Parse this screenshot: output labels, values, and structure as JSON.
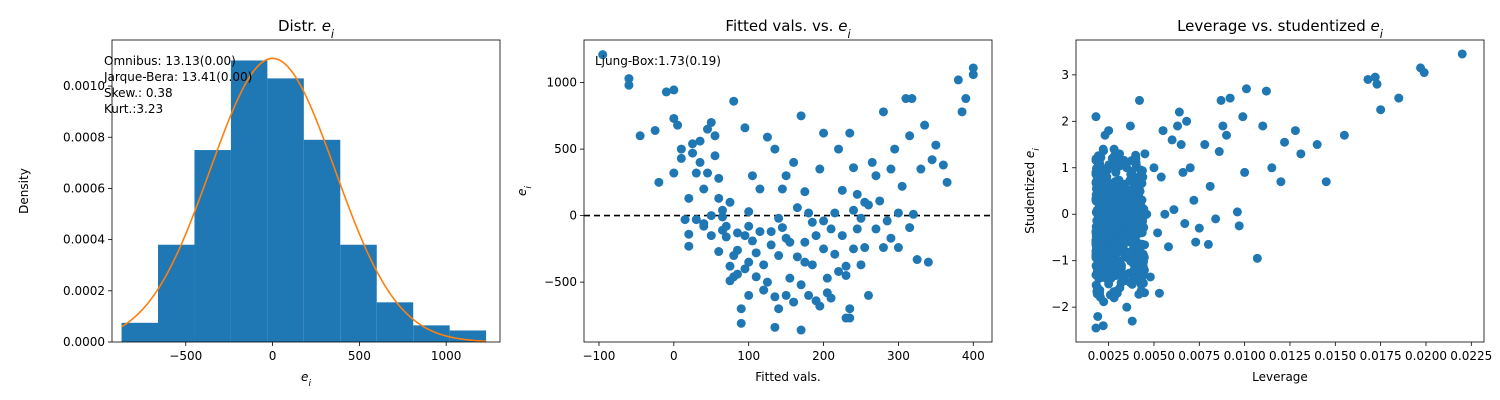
{
  "colors": {
    "bar": "#1f77b4",
    "curve": "#ff7f0e",
    "point": "#1f77b4",
    "zero_line": "#000000"
  },
  "chart_data": [
    {
      "type": "bar",
      "title": "Distr. e_i",
      "xlabel": "e_i",
      "ylabel": "Density",
      "xlim": [
        -925,
        1310
      ],
      "ylim": [
        0,
        0.00118
      ],
      "xticks": [
        -500,
        0,
        500,
        1000
      ],
      "xticklabels": [
        "−500",
        "0",
        "500",
        "1000"
      ],
      "yticks": [
        0,
        0.0002,
        0.0004,
        0.0006,
        0.0008,
        0.001
      ],
      "yticklabels": [
        "0.0000",
        "0.0002",
        "0.0004",
        "0.0006",
        "0.0008",
        "0.0010"
      ],
      "bins": [
        [
          -870,
          -660,
          7.5e-05
        ],
        [
          -660,
          -450,
          0.00038
        ],
        [
          -450,
          -240,
          0.00075
        ],
        [
          -240,
          -30,
          0.0011
        ],
        [
          -30,
          180,
          0.00103
        ],
        [
          180,
          390,
          0.00079
        ],
        [
          390,
          600,
          0.00038
        ],
        [
          600,
          810,
          0.000155
        ],
        [
          810,
          1020,
          6.5e-05
        ],
        [
          1020,
          1230,
          4.5e-05
        ]
      ],
      "density_curve": {
        "name": "normal fit",
        "mean": 0,
        "sd": 360,
        "x_range": [
          -870,
          1230
        ]
      },
      "annotation": [
        "Omnibus: 13.13(0.00)",
        "Jarque-Bera: 13.41(0.00)",
        "Skew.: 0.38",
        "Kurt.:3.23"
      ]
    },
    {
      "type": "scatter",
      "title": "Fitted vals. vs. e_i",
      "xlabel": "Fitted vals.",
      "ylabel": "e_i",
      "xlim": [
        -120,
        425
      ],
      "ylim": [
        -950,
        1320
      ],
      "xticks": [
        -100,
        0,
        100,
        200,
        300,
        400
      ],
      "xticklabels": [
        "−100",
        "0",
        "100",
        "200",
        "300",
        "400"
      ],
      "yticks": [
        -500,
        0,
        500,
        1000
      ],
      "yticklabels": [
        "−500",
        "0",
        "500",
        "1000"
      ],
      "reference_line_y": 0,
      "annotation": "Ljung-Box:1.73(0.19)",
      "points": [
        [
          -95,
          1210
        ],
        [
          -60,
          1030
        ],
        [
          -60,
          980
        ],
        [
          -45,
          600
        ],
        [
          -25,
          640
        ],
        [
          -20,
          250
        ],
        [
          -10,
          930
        ],
        [
          0,
          945
        ],
        [
          0,
          320
        ],
        [
          0,
          730
        ],
        [
          5,
          680
        ],
        [
          10,
          500
        ],
        [
          10,
          430
        ],
        [
          15,
          -30
        ],
        [
          20,
          -230
        ],
        [
          20,
          -140
        ],
        [
          20,
          130
        ],
        [
          25,
          540
        ],
        [
          25,
          470
        ],
        [
          30,
          -30
        ],
        [
          30,
          320
        ],
        [
          35,
          560
        ],
        [
          35,
          400
        ],
        [
          40,
          -80
        ],
        [
          40,
          200
        ],
        [
          40,
          -60
        ],
        [
          45,
          650
        ],
        [
          45,
          320
        ],
        [
          50,
          -150
        ],
        [
          50,
          0
        ],
        [
          50,
          700
        ],
        [
          55,
          450
        ],
        [
          55,
          600
        ],
        [
          60,
          -270
        ],
        [
          60,
          130
        ],
        [
          60,
          280
        ],
        [
          65,
          -10
        ],
        [
          65,
          -110
        ],
        [
          65,
          40
        ],
        [
          70,
          -80
        ],
        [
          70,
          -160
        ],
        [
          75,
          -490
        ],
        [
          75,
          -380
        ],
        [
          75,
          100
        ],
        [
          80,
          -300
        ],
        [
          80,
          -460
        ],
        [
          80,
          860
        ],
        [
          85,
          -130
        ],
        [
          85,
          -260
        ],
        [
          85,
          -440
        ],
        [
          90,
          -810
        ],
        [
          90,
          -700
        ],
        [
          95,
          -400
        ],
        [
          95,
          -150
        ],
        [
          95,
          660
        ],
        [
          100,
          -600
        ],
        [
          100,
          -350
        ],
        [
          100,
          30
        ],
        [
          100,
          -80
        ],
        [
          105,
          -190
        ],
        [
          105,
          300
        ],
        [
          110,
          -280
        ],
        [
          110,
          -460
        ],
        [
          115,
          -120
        ],
        [
          115,
          200
        ],
        [
          120,
          -370
        ],
        [
          120,
          -560
        ],
        [
          125,
          -500
        ],
        [
          125,
          590
        ],
        [
          130,
          -220
        ],
        [
          130,
          -120
        ],
        [
          135,
          -840
        ],
        [
          135,
          -610
        ],
        [
          135,
          500
        ],
        [
          140,
          -700
        ],
        [
          140,
          -300
        ],
        [
          140,
          -20
        ],
        [
          145,
          -90
        ],
        [
          145,
          200
        ],
        [
          150,
          -600
        ],
        [
          150,
          -170
        ],
        [
          150,
          300
        ],
        [
          155,
          -470
        ],
        [
          155,
          -200
        ],
        [
          160,
          -650
        ],
        [
          160,
          400
        ],
        [
          165,
          -310
        ],
        [
          165,
          60
        ],
        [
          170,
          -860
        ],
        [
          170,
          750
        ],
        [
          170,
          -520
        ],
        [
          175,
          -200
        ],
        [
          175,
          -350
        ],
        [
          175,
          180
        ],
        [
          180,
          -600
        ],
        [
          180,
          20
        ],
        [
          185,
          -50
        ],
        [
          185,
          -370
        ],
        [
          190,
          -640
        ],
        [
          190,
          -150
        ],
        [
          195,
          -680
        ],
        [
          195,
          350
        ],
        [
          200,
          -250
        ],
        [
          200,
          -40
        ],
        [
          200,
          620
        ],
        [
          205,
          -580
        ],
        [
          205,
          -470
        ],
        [
          210,
          -620
        ],
        [
          210,
          -100
        ],
        [
          215,
          -290
        ],
        [
          215,
          20
        ],
        [
          220,
          -420
        ],
        [
          220,
          500
        ],
        [
          225,
          -150
        ],
        [
          225,
          190
        ],
        [
          230,
          -770
        ],
        [
          230,
          -450
        ],
        [
          230,
          -380
        ],
        [
          235,
          -770
        ],
        [
          235,
          -700
        ],
        [
          235,
          620
        ],
        [
          240,
          -250
        ],
        [
          240,
          40
        ],
        [
          240,
          360
        ],
        [
          245,
          -100
        ],
        [
          245,
          160
        ],
        [
          250,
          -20
        ],
        [
          250,
          -370
        ],
        [
          255,
          -240
        ],
        [
          255,
          100
        ],
        [
          260,
          80
        ],
        [
          260,
          -600
        ],
        [
          265,
          400
        ],
        [
          270,
          -100
        ],
        [
          270,
          300
        ],
        [
          275,
          110
        ],
        [
          280,
          -240
        ],
        [
          280,
          780
        ],
        [
          285,
          -40
        ],
        [
          290,
          350
        ],
        [
          290,
          -170
        ],
        [
          295,
          500
        ],
        [
          300,
          -240
        ],
        [
          300,
          20
        ],
        [
          305,
          220
        ],
        [
          310,
          880
        ],
        [
          315,
          -90
        ],
        [
          315,
          600
        ],
        [
          318,
          880
        ],
        [
          320,
          10
        ],
        [
          325,
          -330
        ],
        [
          330,
          350
        ],
        [
          335,
          680
        ],
        [
          340,
          -350
        ],
        [
          345,
          420
        ],
        [
          350,
          530
        ],
        [
          360,
          380
        ],
        [
          365,
          250
        ],
        [
          380,
          1020
        ],
        [
          385,
          780
        ],
        [
          390,
          880
        ],
        [
          400,
          1110
        ],
        [
          400,
          1060
        ]
      ]
    },
    {
      "type": "scatter",
      "title": "Leverage vs. studentized e_i",
      "xlabel": "Leverage",
      "ylabel": "Studentized e_i",
      "xlim": [
        0.0007,
        0.0232
      ],
      "ylim": [
        -2.75,
        3.75
      ],
      "xticks": [
        0.0025,
        0.005,
        0.0075,
        0.01,
        0.0125,
        0.015,
        0.0175,
        0.02,
        0.0225
      ],
      "xticklabels": [
        "0.0025",
        "0.0050",
        "0.0075",
        "0.0100",
        "0.0125",
        "0.0150",
        "0.0175",
        "0.0200",
        "0.0225"
      ],
      "yticks": [
        -2,
        -1,
        0,
        1,
        2,
        3
      ],
      "yticklabels": [
        "−2",
        "−1",
        "0",
        "1",
        "2",
        "3"
      ],
      "points": [
        [
          0.0018,
          -2.45
        ],
        [
          0.0018,
          2.1
        ],
        [
          0.0019,
          -2.2
        ],
        [
          0.002,
          -1.7
        ],
        [
          0.002,
          1.1
        ],
        [
          0.002,
          -0.5
        ],
        [
          0.0021,
          0.3
        ],
        [
          0.0021,
          -1.2
        ],
        [
          0.0022,
          1.4
        ],
        [
          0.0022,
          -2.4
        ],
        [
          0.0023,
          1.7
        ],
        [
          0.0023,
          0.0
        ],
        [
          0.0024,
          -0.8
        ],
        [
          0.0024,
          0.8
        ],
        [
          0.0025,
          1.8
        ],
        [
          0.0025,
          -1.5
        ],
        [
          0.0026,
          0.5
        ],
        [
          0.0026,
          -0.3
        ],
        [
          0.0027,
          1.2
        ],
        [
          0.0027,
          -1.0
        ],
        [
          0.0028,
          1.4
        ],
        [
          0.0028,
          -1.8
        ],
        [
          0.0029,
          0.9
        ],
        [
          0.003,
          -0.6
        ],
        [
          0.003,
          0.2
        ],
        [
          0.0031,
          1.3
        ],
        [
          0.0032,
          -1.3
        ],
        [
          0.0033,
          1.1
        ],
        [
          0.0034,
          0.6
        ],
        [
          0.0035,
          -2.0
        ],
        [
          0.0035,
          1.0
        ],
        [
          0.0036,
          -0.2
        ],
        [
          0.0037,
          1.9
        ],
        [
          0.0038,
          -2.3
        ],
        [
          0.0038,
          0.4
        ],
        [
          0.0039,
          -1.4
        ],
        [
          0.004,
          1.2
        ],
        [
          0.0042,
          2.45
        ],
        [
          0.0042,
          -0.9
        ],
        [
          0.0043,
          0.7
        ],
        [
          0.0044,
          -1.3
        ],
        [
          0.0045,
          1.3
        ],
        [
          0.0046,
          0.0
        ],
        [
          0.0048,
          -1.35
        ],
        [
          0.005,
          1.0
        ],
        [
          0.0052,
          -0.4
        ],
        [
          0.0053,
          -1.7
        ],
        [
          0.0054,
          0.8
        ],
        [
          0.0055,
          1.8
        ],
        [
          0.0056,
          0.0
        ],
        [
          0.0058,
          -0.7
        ],
        [
          0.006,
          1.6
        ],
        [
          0.0061,
          0.1
        ],
        [
          0.0063,
          1.9
        ],
        [
          0.0064,
          2.2
        ],
        [
          0.0065,
          1.5
        ],
        [
          0.0066,
          0.9
        ],
        [
          0.0067,
          -0.2
        ],
        [
          0.0068,
          2.0
        ],
        [
          0.007,
          1.0
        ],
        [
          0.0072,
          0.3
        ],
        [
          0.0073,
          -0.6
        ],
        [
          0.0075,
          -0.3
        ],
        [
          0.0078,
          1.5
        ],
        [
          0.008,
          -0.65
        ],
        [
          0.0081,
          0.6
        ],
        [
          0.0084,
          -0.1
        ],
        [
          0.0086,
          1.35
        ],
        [
          0.0087,
          2.45
        ],
        [
          0.0088,
          1.9
        ],
        [
          0.009,
          1.7
        ],
        [
          0.0092,
          2.5
        ],
        [
          0.0096,
          0.05
        ],
        [
          0.0097,
          -0.25
        ],
        [
          0.0099,
          2.1
        ],
        [
          0.01,
          0.9
        ],
        [
          0.0101,
          2.7
        ],
        [
          0.0107,
          -0.95
        ],
        [
          0.011,
          1.9
        ],
        [
          0.0112,
          2.65
        ],
        [
          0.0115,
          1.0
        ],
        [
          0.012,
          0.7
        ],
        [
          0.0122,
          1.55
        ],
        [
          0.0128,
          1.8
        ],
        [
          0.0131,
          1.3
        ],
        [
          0.014,
          1.5
        ],
        [
          0.0145,
          0.7
        ],
        [
          0.0155,
          1.7
        ],
        [
          0.0168,
          2.9
        ],
        [
          0.0172,
          2.95
        ],
        [
          0.0173,
          2.8
        ],
        [
          0.0175,
          2.25
        ],
        [
          0.0185,
          2.5
        ],
        [
          0.0197,
          3.15
        ],
        [
          0.0199,
          3.05
        ],
        [
          0.022,
          3.45
        ]
      ],
      "dense_cluster": {
        "x_range": [
          0.0018,
          0.0045
        ],
        "y_range": [
          -1.9,
          1.4
        ],
        "count": 520
      }
    }
  ]
}
